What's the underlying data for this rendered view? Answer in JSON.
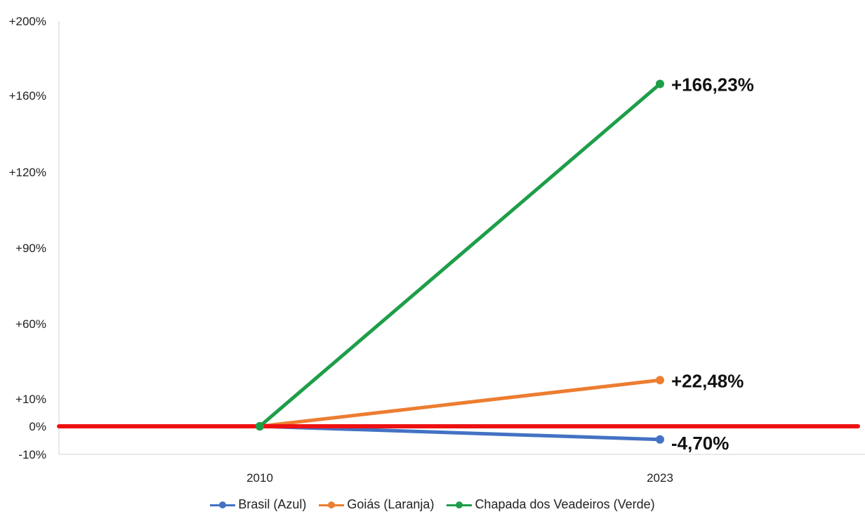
{
  "chart_data": {
    "type": "line",
    "x": [
      "2010",
      "2023"
    ],
    "y_ticks": [
      {
        "label": "+200%",
        "value": 200
      },
      {
        "label": "+160%",
        "value": 160
      },
      {
        "label": "+120%",
        "value": 120
      },
      {
        "label": "+90%",
        "value": 90
      },
      {
        "label": "+60%",
        "value": 60
      },
      {
        "label": "+10%",
        "value": 10
      },
      {
        "label": "0%",
        "value": 0
      },
      {
        "label": "-10%",
        "value": -10
      }
    ],
    "series": [
      {
        "name": "Brasil (Azul)",
        "color": "#4472c4",
        "values": [
          0,
          -4.7
        ],
        "end_label": "-4,70%"
      },
      {
        "name": "Goiás (Laranja)",
        "color": "#ed7d31",
        "values": [
          0,
          22.48
        ],
        "end_label": "+22,48%"
      },
      {
        "name": "Chapada dos Veadeiros (Verde)",
        "color": "#1e9e48",
        "values": [
          0,
          166.23
        ],
        "end_label": "+166,23%"
      }
    ],
    "reference_line": {
      "value": 0,
      "color": "#ee1111"
    },
    "legend_position": "bottom",
    "grid": false
  }
}
